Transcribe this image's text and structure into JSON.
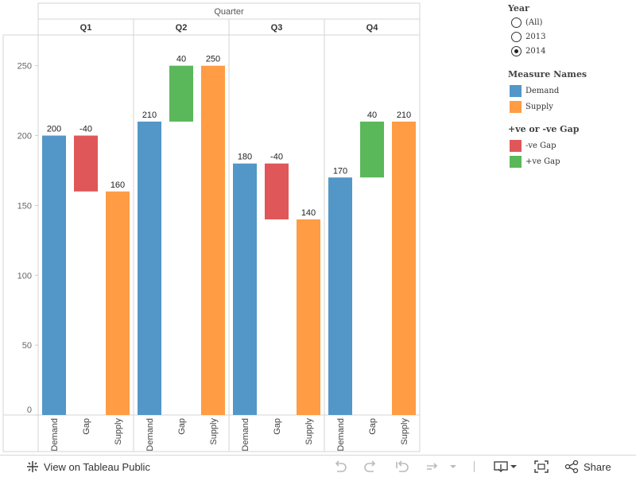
{
  "chart_data": {
    "type": "bar",
    "column_header": "Quarter",
    "quarters": [
      "Q1",
      "Q2",
      "Q3",
      "Q4"
    ],
    "measures": [
      "Demand",
      "Gap",
      "Supply"
    ],
    "y_ticks": [
      0,
      50,
      100,
      150,
      200,
      250
    ],
    "ylim": [
      0,
      272
    ],
    "data": [
      {
        "quarter": "Q1",
        "demand": 200,
        "supply": 160,
        "gap": -40
      },
      {
        "quarter": "Q2",
        "demand": 210,
        "supply": 250,
        "gap": 40
      },
      {
        "quarter": "Q3",
        "demand": 180,
        "supply": 140,
        "gap": -40
      },
      {
        "quarter": "Q4",
        "demand": 170,
        "supply": 210,
        "gap": 40
      }
    ],
    "colors": {
      "Demand": "#5297c7",
      "Supply": "#ff9c44",
      "-ve Gap": "#e05759",
      "+ve Gap": "#5ab85a"
    },
    "grid": false
  },
  "legend": {
    "year": {
      "title": "Year",
      "options": [
        {
          "label": "(All)",
          "selected": false
        },
        {
          "label": "2013",
          "selected": false
        },
        {
          "label": "2014",
          "selected": true
        }
      ]
    },
    "measure_names": {
      "title": "Measure Names",
      "items": [
        {
          "label": "Demand",
          "color": "#5297c7"
        },
        {
          "label": "Supply",
          "color": "#ff9c44"
        }
      ]
    },
    "gap": {
      "title": "+ve or -ve Gap",
      "items": [
        {
          "label": "-ve Gap",
          "color": "#e05759"
        },
        {
          "label": "+ve Gap",
          "color": "#5ab85a"
        }
      ]
    }
  },
  "toolbar": {
    "view_label": "View on Tableau Public",
    "share_label": "Share"
  }
}
